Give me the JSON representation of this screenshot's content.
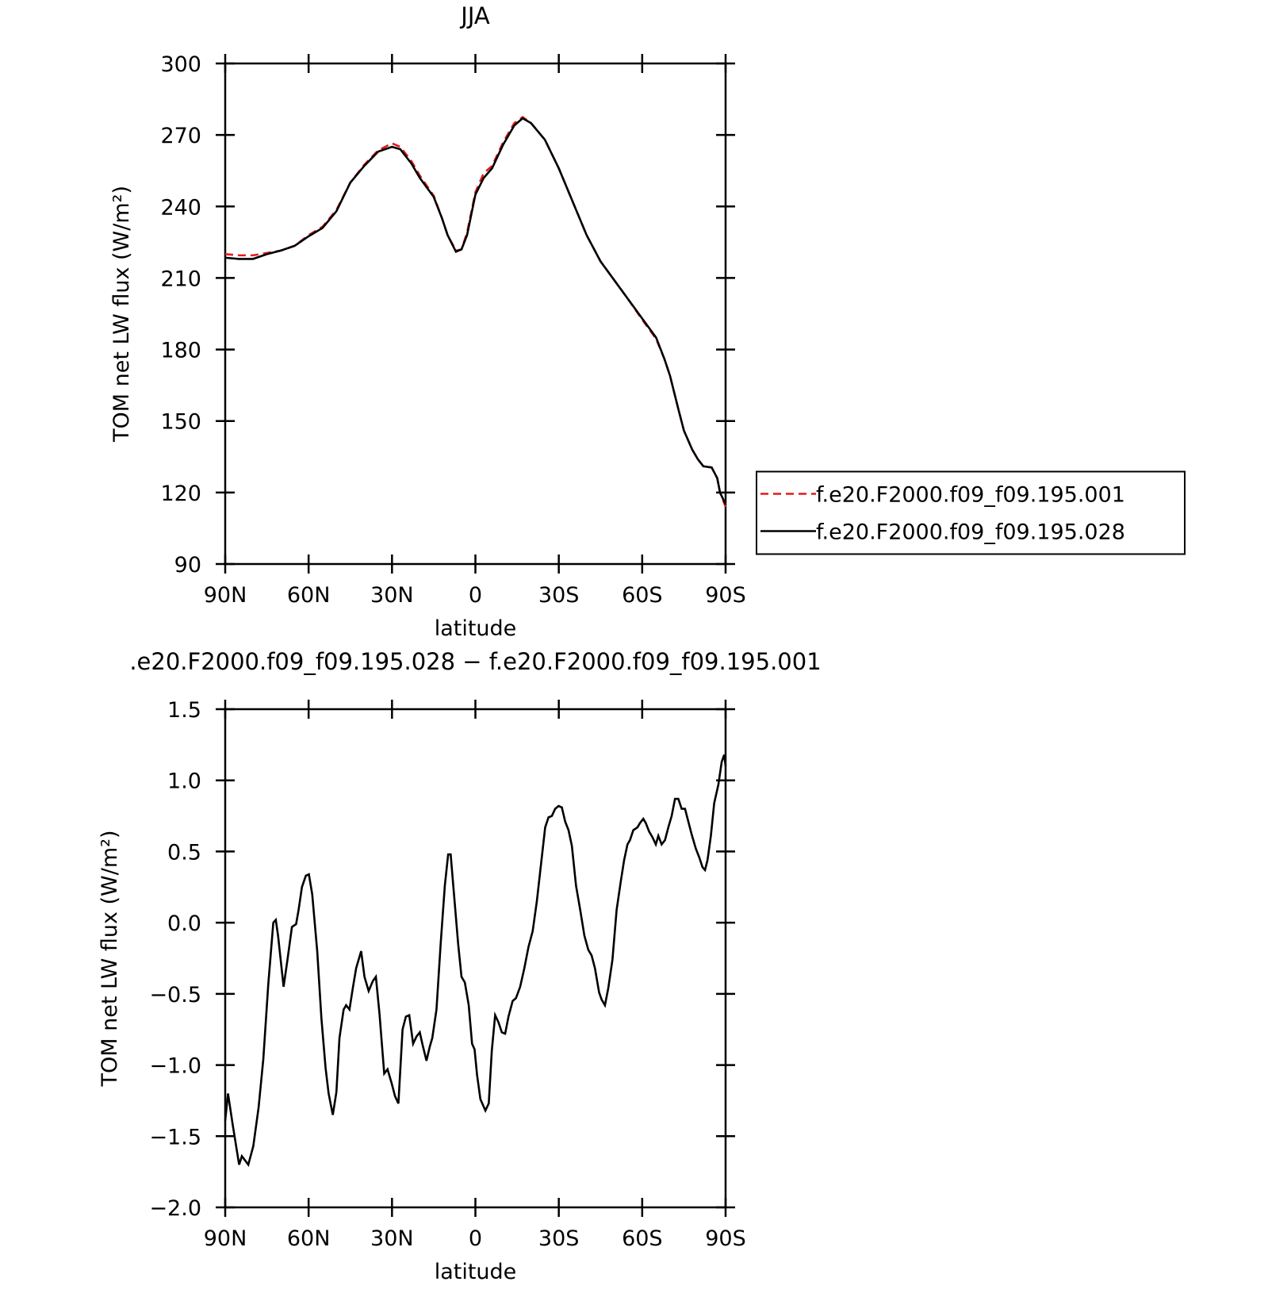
{
  "chart_data": [
    {
      "type": "line",
      "title": "JJA",
      "x_label": "latitude",
      "y_label": "TOM net LW flux (W/m²)",
      "x": [
        90,
        85,
        80,
        75,
        70,
        65,
        60,
        55,
        50,
        45,
        40,
        35,
        30,
        27,
        23,
        20,
        15,
        12,
        10,
        7,
        5,
        3,
        0,
        -3,
        -6,
        -10,
        -14,
        -17,
        -20,
        -25,
        -30,
        -35,
        -40,
        -45,
        -50,
        -55,
        -60,
        -65,
        -68,
        -70,
        -73,
        -75,
        -78,
        -80,
        -82,
        -85,
        -87,
        -88,
        -90
      ],
      "series": [
        {
          "name": "f.e20.F2000.f09_f09.195.001",
          "color": "#e31a1c",
          "linestyle": "dashed",
          "values": [
            220,
            219.5,
            219.5,
            220.5,
            221.5,
            223.5,
            228,
            231.5,
            238.5,
            250,
            257.5,
            263.5,
            266.5,
            265,
            259,
            253,
            244.5,
            235,
            228,
            221.5,
            222,
            229,
            246,
            254,
            257,
            267,
            275,
            277.5,
            275,
            268,
            256,
            242,
            228,
            217,
            209,
            201,
            192.5,
            184.5,
            176,
            169,
            155,
            146,
            138,
            134,
            131,
            130.5,
            126,
            120,
            114
          ]
        },
        {
          "name": "f.e20.F2000.f09_f09.195.028",
          "color": "#000000",
          "linestyle": "solid",
          "values": [
            218.5,
            218,
            218,
            220,
            221.5,
            223.5,
            227.5,
            231,
            238,
            250,
            257,
            263,
            265,
            264,
            258,
            252,
            244,
            235,
            228,
            221,
            222,
            228,
            245,
            252,
            256,
            266,
            274,
            277,
            275,
            268,
            256,
            242,
            228,
            217,
            209,
            201,
            193,
            185,
            176,
            169,
            155,
            146,
            138,
            134,
            131,
            130.5,
            126,
            120,
            115
          ]
        }
      ],
      "xlim": [
        90,
        -90
      ],
      "xticks": [
        {
          "value": 90,
          "label": "90N"
        },
        {
          "value": 60,
          "label": "60N"
        },
        {
          "value": 30,
          "label": "30N"
        },
        0,
        {
          "value": -30,
          "label": "30S"
        },
        {
          "value": -60,
          "label": "60S"
        },
        {
          "value": -90,
          "label": "90S"
        }
      ],
      "ylim": [
        90,
        300
      ],
      "yticks": [
        90,
        120,
        150,
        180,
        210,
        240,
        270,
        300
      ],
      "legend": "right"
    },
    {
      "type": "line",
      "title": ".e20.F2000.f09_f09.195.028 − f.e20.F2000.f09_f09.195.001",
      "x_label": "latitude",
      "y_label": "TOM net LW flux (W/m²)",
      "x": [
        90,
        89,
        87.3,
        85,
        84,
        81.7,
        79.9,
        78,
        76.3,
        74.5,
        72.7,
        71.8,
        71,
        69,
        67.6,
        66,
        64.5,
        63.6,
        62.4,
        61,
        59.9,
        58.7,
        56.9,
        55.4,
        53.9,
        52.8,
        51.3,
        50,
        48.9,
        47.4,
        46.5,
        45.3,
        44.1,
        42.9,
        41.1,
        39.9,
        38.4,
        36.9,
        35.8,
        34.5,
        32.8,
        31.6,
        30.1,
        28.9,
        27.7,
        26.2,
        25,
        23.8,
        22.4,
        21.2,
        20,
        19.1,
        17.6,
        16.4,
        15.5,
        14,
        12.5,
        11,
        9.8,
        8.9,
        7.7,
        6.2,
        5,
        3.8,
        2.4,
        1.2,
        0.3,
        -0.6,
        -1.8,
        -3.6,
        -4.8,
        -5.9,
        -7.1,
        -8.3,
        -9.5,
        -10.7,
        -11.9,
        -13.4,
        -14.6,
        -16.1,
        -17.6,
        -19.1,
        -20.6,
        -22.1,
        -23.6,
        -25.1,
        -26.3,
        -27.5,
        -28.7,
        -29.9,
        -31.1,
        -32.3,
        -33.5,
        -34.7,
        -36.2,
        -37.7,
        -39.2,
        -40.6,
        -41.8,
        -43,
        -44.5,
        -45.4,
        -46.6,
        -47.8,
        -49.3,
        -50.8,
        -52.3,
        -53.5,
        -54.7,
        -55.6,
        -56.8,
        -58.3,
        -59.2,
        -60.4,
        -61.3,
        -62.5,
        -63.7,
        -64.9,
        -65.8,
        -67,
        -68.2,
        -69.4,
        -70.6,
        -71.8,
        -73,
        -74.2,
        -75.4,
        -76.6,
        -77.8,
        -79.3,
        -80.5,
        -81.7,
        -82.6,
        -83.5,
        -84.7,
        -85.9,
        -87.4,
        -88.6,
        -89.5,
        -90
      ],
      "series": [
        {
          "color": "#000000",
          "linestyle": "solid",
          "values": [
            -1.39,
            -1.2,
            -1.42,
            -1.7,
            -1.64,
            -1.7,
            -1.57,
            -1.3,
            -0.96,
            -0.43,
            0,
            0.02,
            -0.09,
            -0.45,
            -0.26,
            -0.03,
            -0.01,
            0.09,
            0.25,
            0.33,
            0.34,
            0.2,
            -0.2,
            -0.67,
            -1.02,
            -1.2,
            -1.35,
            -1.19,
            -0.81,
            -0.61,
            -0.58,
            -0.61,
            -0.46,
            -0.32,
            -0.2,
            -0.38,
            -0.48,
            -0.41,
            -0.38,
            -0.64,
            -1.06,
            -1.03,
            -1.13,
            -1.22,
            -1.27,
            -0.75,
            -0.66,
            -0.65,
            -0.85,
            -0.8,
            -0.77,
            -0.85,
            -0.97,
            -0.87,
            -0.81,
            -0.61,
            -0.15,
            0.26,
            0.48,
            0.48,
            0.2,
            -0.15,
            -0.38,
            -0.42,
            -0.58,
            -0.85,
            -0.89,
            -1.07,
            -1.24,
            -1.32,
            -1.27,
            -0.9,
            -0.65,
            -0.7,
            -0.77,
            -0.78,
            -0.66,
            -0.55,
            -0.53,
            -0.45,
            -0.32,
            -0.17,
            -0.06,
            0.15,
            0.41,
            0.67,
            0.74,
            0.75,
            0.8,
            0.82,
            0.81,
            0.71,
            0.65,
            0.54,
            0.26,
            0.09,
            -0.09,
            -0.19,
            -0.23,
            -0.32,
            -0.49,
            -0.54,
            -0.58,
            -0.46,
            -0.26,
            0.09,
            0.29,
            0.44,
            0.55,
            0.58,
            0.65,
            0.67,
            0.7,
            0.73,
            0.7,
            0.64,
            0.6,
            0.55,
            0.61,
            0.55,
            0.58,
            0.67,
            0.75,
            0.87,
            0.87,
            0.8,
            0.8,
            0.71,
            0.62,
            0.52,
            0.46,
            0.39,
            0.37,
            0.44,
            0.61,
            0.84,
            0.97,
            1.13,
            1.18,
            1.1
          ]
        }
      ],
      "xlim": [
        90,
        -90
      ],
      "xticks": [
        {
          "value": 90,
          "label": "90N"
        },
        {
          "value": 60,
          "label": "60N"
        },
        {
          "value": 30,
          "label": "30N"
        },
        0,
        {
          "value": -30,
          "label": "30S"
        },
        {
          "value": -60,
          "label": "60S"
        },
        {
          "value": -90,
          "label": "90S"
        }
      ],
      "ylim": [
        -2,
        1.5
      ],
      "yticks": [
        {
          "value": -2,
          "label": "−2.0"
        },
        {
          "value": -1.5,
          "label": "−1.5"
        },
        {
          "value": -1,
          "label": "−1.0"
        },
        {
          "value": -0.5,
          "label": "−0.5"
        },
        {
          "value": 0,
          "label": "0.0"
        },
        0.5,
        {
          "value": 1,
          "label": "1.0"
        },
        1.5
      ]
    }
  ]
}
